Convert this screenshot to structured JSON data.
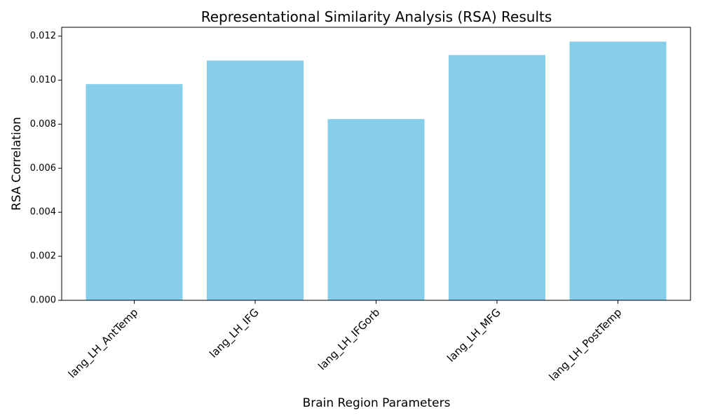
{
  "chart_data": {
    "type": "bar",
    "title": "Representational Similarity Analysis (RSA) Results",
    "xlabel": "Brain Region Parameters",
    "ylabel": "RSA Correlation",
    "categories": [
      "lang_LH_AntTemp",
      "lang_LH_IFG",
      "lang_LH_IFGorb",
      "lang_LH_MFG",
      "lang_LH_PostTemp"
    ],
    "values": [
      0.00982,
      0.01089,
      0.00823,
      0.01114,
      0.01175
    ],
    "ylim": [
      0,
      0.0124
    ],
    "yticks": [
      "0.000",
      "0.002",
      "0.004",
      "0.006",
      "0.008",
      "0.010",
      "0.012"
    ],
    "bar_color": "#87ceeb",
    "grid": false,
    "legend": "none"
  }
}
